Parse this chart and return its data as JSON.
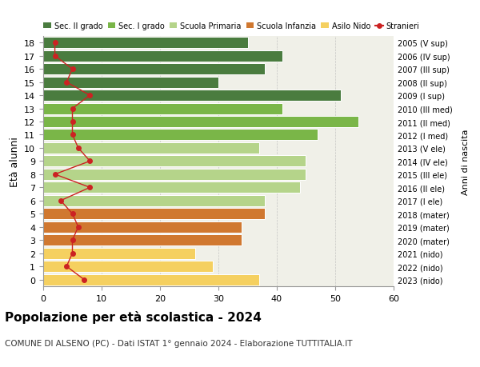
{
  "ages": [
    18,
    17,
    16,
    15,
    14,
    13,
    12,
    11,
    10,
    9,
    8,
    7,
    6,
    5,
    4,
    3,
    2,
    1,
    0
  ],
  "bar_values": [
    35,
    41,
    38,
    30,
    51,
    41,
    54,
    47,
    37,
    45,
    45,
    44,
    38,
    38,
    34,
    34,
    26,
    29,
    37
  ],
  "bar_colors": [
    "#4a7c3f",
    "#4a7c3f",
    "#4a7c3f",
    "#4a7c3f",
    "#4a7c3f",
    "#7ab648",
    "#7ab648",
    "#7ab648",
    "#b5d48a",
    "#b5d48a",
    "#b5d48a",
    "#b5d48a",
    "#b5d48a",
    "#d07830",
    "#d07830",
    "#d07830",
    "#f5d060",
    "#f5d060",
    "#f5d060"
  ],
  "stranieri_values": [
    2,
    2,
    5,
    4,
    8,
    5,
    5,
    5,
    6,
    8,
    2,
    8,
    3,
    5,
    6,
    5,
    5,
    4,
    7
  ],
  "right_labels": [
    "2005 (V sup)",
    "2006 (IV sup)",
    "2007 (III sup)",
    "2008 (II sup)",
    "2009 (I sup)",
    "2010 (III med)",
    "2011 (II med)",
    "2012 (I med)",
    "2013 (V ele)",
    "2014 (IV ele)",
    "2015 (III ele)",
    "2016 (II ele)",
    "2017 (I ele)",
    "2018 (mater)",
    "2019 (mater)",
    "2020 (mater)",
    "2021 (nido)",
    "2022 (nido)",
    "2023 (nido)"
  ],
  "legend_labels": [
    "Sec. II grado",
    "Sec. I grado",
    "Scuola Primaria",
    "Scuola Infanzia",
    "Asilo Nido",
    "Stranieri"
  ],
  "legend_colors": [
    "#4a7c3f",
    "#7ab648",
    "#b5d48a",
    "#d07830",
    "#f5d060",
    "#cc2222"
  ],
  "ylabel": "Età alunni",
  "ylabel_right": "Anni di nascita",
  "title": "Popolazione per età scolastica - 2024",
  "subtitle": "COMUNE DI ALSENO (PC) - Dati ISTAT 1° gennaio 2024 - Elaborazione TUTTITALIA.IT",
  "xlim": [
    0,
    60
  ],
  "xticks": [
    0,
    10,
    20,
    30,
    40,
    50,
    60
  ],
  "stranieri_color": "#cc2222",
  "background_color": "#f0f0e8",
  "grid_color": "#bbbbbb"
}
